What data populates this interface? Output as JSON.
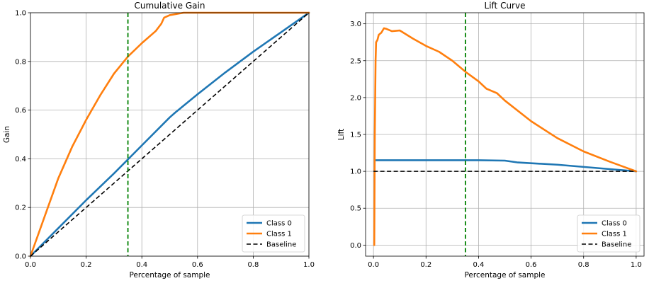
{
  "chart_data": [
    {
      "type": "line",
      "title": "Cumulative Gain",
      "xlabel": "Percentage of sample",
      "ylabel": "Gain",
      "xlim": [
        0,
        1
      ],
      "ylim": [
        0,
        1
      ],
      "xticks": [
        "0.0",
        "0.2",
        "0.4",
        "0.6",
        "0.8",
        "1.0"
      ],
      "yticks": [
        "0.0",
        "0.2",
        "0.4",
        "0.6",
        "0.8",
        "1.0"
      ],
      "grid": true,
      "legend_position": "bottom-right",
      "vline_x": 0.35,
      "vline_color": "#008000",
      "series": [
        {
          "name": "Class 0",
          "color": "#1f77b4",
          "x": [
            0,
            0.1,
            0.2,
            0.3,
            0.4,
            0.5,
            0.52,
            0.6,
            0.7,
            0.8,
            0.9,
            1.0
          ],
          "y": [
            0,
            0.115,
            0.23,
            0.34,
            0.455,
            0.57,
            0.59,
            0.665,
            0.755,
            0.84,
            0.92,
            1.0
          ]
        },
        {
          "name": "Class 1",
          "color": "#ff7f0e",
          "x": [
            0,
            0.05,
            0.1,
            0.15,
            0.2,
            0.25,
            0.3,
            0.35,
            0.4,
            0.45,
            0.47,
            0.48,
            0.5,
            0.55,
            0.6,
            0.8,
            1.0
          ],
          "y": [
            0,
            0.16,
            0.32,
            0.45,
            0.56,
            0.66,
            0.75,
            0.82,
            0.875,
            0.925,
            0.955,
            0.98,
            0.99,
            1.0,
            1.0,
            1.0,
            1.0
          ]
        },
        {
          "name": "Baseline",
          "color": "#000000",
          "dashed": true,
          "x": [
            0,
            1
          ],
          "y": [
            0,
            1
          ]
        }
      ]
    },
    {
      "type": "line",
      "title": "Lift Curve",
      "xlabel": "Percentage of sample",
      "ylabel": "Lift",
      "xlim": [
        -0.03,
        1.03
      ],
      "ylim": [
        -0.15,
        3.15
      ],
      "xticks": [
        "0.0",
        "0.2",
        "0.4",
        "0.6",
        "0.8",
        "1.0"
      ],
      "yticks": [
        "0.0",
        "0.5",
        "1.0",
        "1.5",
        "2.0",
        "2.5",
        "3.0"
      ],
      "grid": true,
      "legend_position": "bottom-right",
      "vline_x": 0.35,
      "vline_color": "#008000",
      "series": [
        {
          "name": "Class 0",
          "color": "#1f77b4",
          "x": [
            0.005,
            0.01,
            0.1,
            0.2,
            0.3,
            0.4,
            0.5,
            0.55,
            0.6,
            0.7,
            0.8,
            0.9,
            1.0
          ],
          "y": [
            1.15,
            1.15,
            1.15,
            1.15,
            1.15,
            1.15,
            1.145,
            1.12,
            1.11,
            1.09,
            1.06,
            1.03,
            1.0
          ]
        },
        {
          "name": "Class 1",
          "color": "#ff7f0e",
          "x": [
            0.003,
            0.005,
            0.008,
            0.01,
            0.015,
            0.02,
            0.03,
            0.04,
            0.05,
            0.07,
            0.1,
            0.15,
            0.2,
            0.25,
            0.3,
            0.35,
            0.4,
            0.43,
            0.47,
            0.5,
            0.6,
            0.7,
            0.8,
            0.9,
            1.0
          ],
          "y": [
            0.0,
            1.5,
            2.5,
            2.75,
            2.78,
            2.85,
            2.88,
            2.94,
            2.93,
            2.9,
            2.91,
            2.8,
            2.7,
            2.62,
            2.5,
            2.35,
            2.22,
            2.12,
            2.06,
            1.96,
            1.68,
            1.45,
            1.27,
            1.13,
            1.0
          ]
        },
        {
          "name": "Baseline",
          "color": "#000000",
          "dashed": true,
          "x": [
            0,
            1
          ],
          "y": [
            1,
            1
          ]
        }
      ]
    }
  ]
}
